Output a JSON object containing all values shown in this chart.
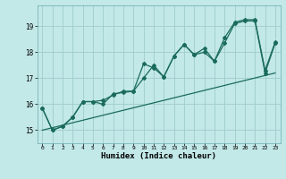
{
  "xlabel": "Humidex (Indice chaleur)",
  "bg_color": "#c2e8e8",
  "grid_color": "#a0cccc",
  "line_color": "#1a6b5a",
  "xlim": [
    -0.5,
    23.5
  ],
  "ylim": [
    14.5,
    19.8
  ],
  "xticks": [
    0,
    1,
    2,
    3,
    4,
    5,
    6,
    7,
    8,
    9,
    10,
    11,
    12,
    13,
    14,
    15,
    16,
    17,
    18,
    19,
    20,
    21,
    22,
    23
  ],
  "yticks": [
    15,
    16,
    17,
    18,
    19
  ],
  "line1_x": [
    0,
    1,
    2,
    3,
    4,
    5,
    6,
    7,
    8,
    9,
    10,
    11,
    12,
    13,
    14,
    15,
    16,
    17,
    18,
    19,
    20,
    21,
    22,
    23
  ],
  "line1_y": [
    15.85,
    15.0,
    15.15,
    15.5,
    16.1,
    16.1,
    16.0,
    16.4,
    16.45,
    16.5,
    17.55,
    17.4,
    17.05,
    17.85,
    18.3,
    17.9,
    18.0,
    17.65,
    18.35,
    19.1,
    19.2,
    19.2,
    17.2,
    18.35
  ],
  "line2_x": [
    0,
    1,
    2,
    3,
    4,
    5,
    6,
    7,
    8,
    9,
    10,
    11,
    12,
    13,
    14,
    15,
    16,
    17,
    18,
    19,
    20,
    21,
    22,
    23
  ],
  "line2_y": [
    15.85,
    15.0,
    15.15,
    15.5,
    16.1,
    16.1,
    16.15,
    16.35,
    16.5,
    16.5,
    17.0,
    17.5,
    17.05,
    17.85,
    18.3,
    17.9,
    18.15,
    17.65,
    18.55,
    19.15,
    19.25,
    19.25,
    17.3,
    18.4
  ],
  "line3_x": [
    0,
    23
  ],
  "line3_y": [
    15.0,
    17.2
  ]
}
